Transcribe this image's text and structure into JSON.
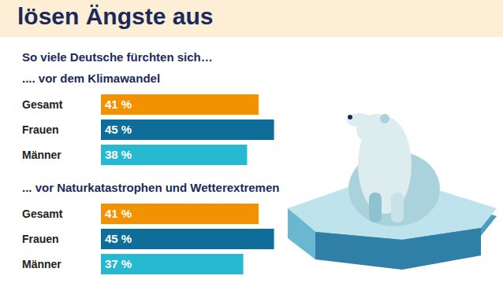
{
  "header": {
    "title": "lösen Ängste aus",
    "subtitle": "So viele Deutsche fürchten sich…"
  },
  "chart_data": [
    {
      "type": "bar",
      "orientation": "horizontal",
      "title": ".... vor dem Klimawandel",
      "categories": [
        "Gesamt",
        "Frauen",
        "Männer"
      ],
      "values": [
        41,
        45,
        38
      ],
      "value_labels": [
        "41 %",
        "45 %",
        "38 %"
      ],
      "colors": [
        "#f39200",
        "#0f6e99",
        "#27b9cf"
      ],
      "xlim": [
        0,
        100
      ],
      "data_labels": true,
      "tick_labels": "y",
      "grid": false
    },
    {
      "type": "bar",
      "orientation": "horizontal",
      "title": "... vor Naturkatastrophen und Wetterextremen",
      "categories": [
        "Gesamt",
        "Frauen",
        "Männer"
      ],
      "values": [
        41,
        45,
        37
      ],
      "value_labels": [
        "41 %",
        "45 %",
        "37 %"
      ],
      "colors": [
        "#f39200",
        "#0f6e99",
        "#27b9cf"
      ],
      "xlim": [
        0,
        100
      ],
      "data_labels": true,
      "tick_labels": "y",
      "grid": false
    }
  ]
}
